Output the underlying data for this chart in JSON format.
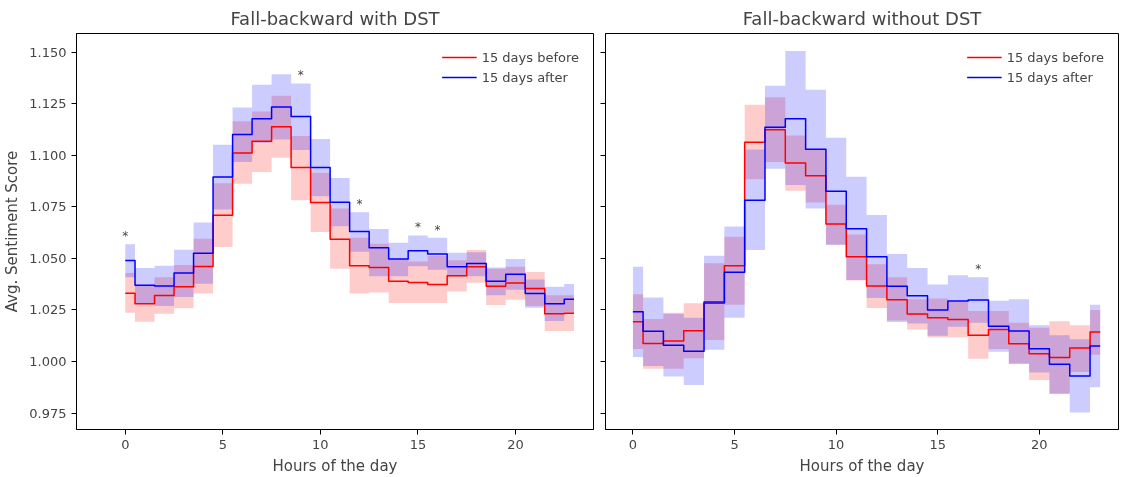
{
  "chart_data": [
    {
      "type": "step",
      "title": "Fall-backward with DST",
      "xlabel": "Hours of the day",
      "ylabel": "Avg. Sentiment Score",
      "x": [
        0,
        1,
        2,
        3,
        4,
        5,
        6,
        7,
        8,
        9,
        10,
        11,
        12,
        13,
        14,
        15,
        16,
        17,
        18,
        19,
        20,
        21,
        22,
        23
      ],
      "xlim": [
        -2.5,
        24
      ],
      "xticks": [
        0,
        5,
        10,
        15,
        20
      ],
      "ylim": [
        0.967,
        1.159
      ],
      "yticks": [
        {
          "value": 0.975,
          "label": "0.975"
        },
        {
          "value": 1.0,
          "label": "1.000"
        },
        {
          "value": 1.025,
          "label": "1.025"
        },
        {
          "value": 1.05,
          "label": "1.050"
        },
        {
          "value": 1.075,
          "label": "1.075"
        },
        {
          "value": 1.1,
          "label": "1.100"
        },
        {
          "value": 1.125,
          "label": "1.125"
        },
        {
          "value": 1.15,
          "label": "1.150"
        }
      ],
      "grid": false,
      "legend": "top right",
      "series": [
        {
          "name": "15 days before",
          "color": "#ff0000",
          "values": [
            1.0331,
            1.028,
            1.032,
            1.0362,
            1.046,
            1.0709,
            1.1011,
            1.1068,
            1.1138,
            1.094,
            1.0771,
            1.0593,
            1.0464,
            1.0456,
            1.0389,
            1.0383,
            1.0373,
            1.0416,
            1.0459,
            1.0364,
            1.038,
            1.0354,
            1.0231,
            1.0234
          ],
          "lower": [
            1.0236,
            1.0193,
            1.0231,
            1.0258,
            1.0329,
            1.0555,
            1.0861,
            1.0919,
            1.0987,
            1.0782,
            1.0627,
            1.0449,
            1.0329,
            1.0334,
            1.0283,
            1.0283,
            1.0283,
            1.0339,
            1.0381,
            1.0274,
            1.0299,
            1.0269,
            1.0147,
            1.0147
          ],
          "upper": [
            1.0429,
            1.0369,
            1.0408,
            1.0468,
            1.0595,
            1.0864,
            1.1165,
            1.1212,
            1.1288,
            1.1093,
            1.0915,
            1.0741,
            1.06,
            1.0571,
            1.0497,
            1.0484,
            1.0511,
            1.0491,
            1.054,
            1.045,
            1.0459,
            1.0434,
            1.0321,
            1.0321
          ]
        },
        {
          "name": "15 days after",
          "color": "#0000ff",
          "values": [
            1.0489,
            1.0369,
            1.0366,
            1.0429,
            1.0524,
            1.0894,
            1.11,
            1.1177,
            1.1234,
            1.1187,
            1.094,
            1.0772,
            1.063,
            1.0551,
            1.0497,
            1.0537,
            1.0521,
            1.0459,
            1.0475,
            1.0389,
            1.0423,
            1.0329,
            1.028,
            1.0302
          ],
          "lower": [
            1.0408,
            1.0282,
            1.0269,
            1.0313,
            1.0377,
            1.0737,
            1.0967,
            1.106,
            1.1076,
            1.1025,
            1.0801,
            1.0655,
            1.0532,
            1.0413,
            1.0413,
            1.0462,
            1.0445,
            1.0413,
            1.0413,
            1.0321,
            1.0347,
            1.026,
            1.0196,
            1.0237
          ],
          "upper": [
            1.0568,
            1.0453,
            1.0464,
            1.0541,
            1.0674,
            1.1051,
            1.1231,
            1.1342,
            1.1392,
            1.1348,
            1.1078,
            1.0889,
            1.0723,
            1.0642,
            1.0576,
            1.0611,
            1.06,
            1.0527,
            1.0529,
            1.0456,
            1.0497,
            1.0397,
            1.0362,
            1.0375
          ]
        }
      ],
      "annotations": [
        {
          "text": "*",
          "x": 0,
          "y": 1.0568
        },
        {
          "text": "*",
          "x": 9,
          "y": 1.1348
        },
        {
          "text": "*",
          "x": 12,
          "y": 1.0723
        },
        {
          "text": "*",
          "x": 15,
          "y": 1.0611
        },
        {
          "text": "*",
          "x": 16,
          "y": 1.06
        }
      ]
    },
    {
      "type": "step",
      "title": "Fall-backward without DST",
      "xlabel": "Hours of the day",
      "x": [
        0,
        1,
        2,
        3,
        4,
        5,
        6,
        7,
        8,
        9,
        10,
        11,
        12,
        13,
        14,
        15,
        16,
        17,
        18,
        19,
        20,
        21,
        22,
        23
      ],
      "xlim": [
        -1.35,
        23.9
      ],
      "xticks": [
        0,
        5,
        10,
        15,
        20
      ],
      "ylim": [
        0.967,
        1.159
      ],
      "yticks": [
        {
          "value": 0.975,
          "label": null
        },
        {
          "value": 1.0,
          "label": null
        },
        {
          "value": 1.025,
          "label": null
        },
        {
          "value": 1.05,
          "label": null
        },
        {
          "value": 1.075,
          "label": null
        },
        {
          "value": 1.1,
          "label": null
        },
        {
          "value": 1.125,
          "label": null
        },
        {
          "value": 1.15,
          "label": null
        }
      ],
      "tick_labels": "x",
      "grid": false,
      "legend": "top right",
      "series": [
        {
          "name": "15 days before",
          "color": "#ff0000",
          "values": [
            1.0193,
            1.0087,
            1.0099,
            1.0149,
            1.029,
            1.0464,
            1.1063,
            1.1123,
            1.0962,
            1.09,
            1.0666,
            1.0507,
            1.0366,
            1.0299,
            1.023,
            1.0212,
            1.0203,
            1.0127,
            1.0155,
            1.0086,
            1.0037,
            1.0019,
            1.0065,
            1.0143
          ],
          "lower": [
            1.006,
            0.9965,
            0.9965,
            1.0016,
            1.0104,
            1.0275,
            1.0883,
            1.0967,
            1.0828,
            1.0771,
            1.0567,
            1.0392,
            1.0259,
            1.0199,
            1.0155,
            1.0117,
            1.0117,
            1.0013,
            1.006,
            0.9989,
            0.991,
            0.9843,
            0.9949,
            1.0033
          ],
          "upper": [
            1.0326,
            1.0206,
            1.0236,
            1.0282,
            1.0476,
            1.0604,
            1.1244,
            1.1281,
            1.1095,
            1.1029,
            1.076,
            1.0616,
            1.0471,
            1.0408,
            1.0302,
            1.0305,
            1.0291,
            1.0244,
            1.0244,
            1.0187,
            1.0163,
            1.0195,
            1.0176,
            1.025
          ]
        },
        {
          "name": "15 days after",
          "color": "#0000ff",
          "values": [
            1.0241,
            1.0146,
            1.0078,
            1.0049,
            1.0283,
            1.0432,
            1.0782,
            1.1135,
            1.1177,
            1.1029,
            1.0825,
            1.0643,
            1.0508,
            1.0364,
            1.0318,
            1.025,
            1.0293,
            1.0298,
            1.0171,
            1.0148,
            1.0061,
            0.9986,
            0.9929,
            1.0075
          ],
          "lower": [
            1.0022,
            0.9978,
            0.9927,
            0.9886,
            1.0057,
            1.0212,
            1.054,
            1.0934,
            1.0855,
            1.0742,
            1.0565,
            1.0395,
            1.0307,
            1.0191,
            1.0184,
            1.0125,
            1.0168,
            1.0187,
            1.0047,
            0.9989,
            0.9946,
            0.9843,
            0.9752,
            0.9875
          ],
          "upper": [
            1.0459,
            1.031,
            1.0231,
            1.0212,
            1.0513,
            1.0654,
            1.1027,
            1.1337,
            1.1505,
            1.1317,
            1.1084,
            1.0895,
            1.071,
            1.0521,
            1.0453,
            1.0373,
            1.0418,
            1.0408,
            1.0294,
            1.0302,
            1.0176,
            1.0127,
            1.0108,
            1.0275
          ]
        }
      ],
      "annotations": [
        {
          "text": "*",
          "x": 17,
          "y": 1.0408
        }
      ]
    }
  ]
}
